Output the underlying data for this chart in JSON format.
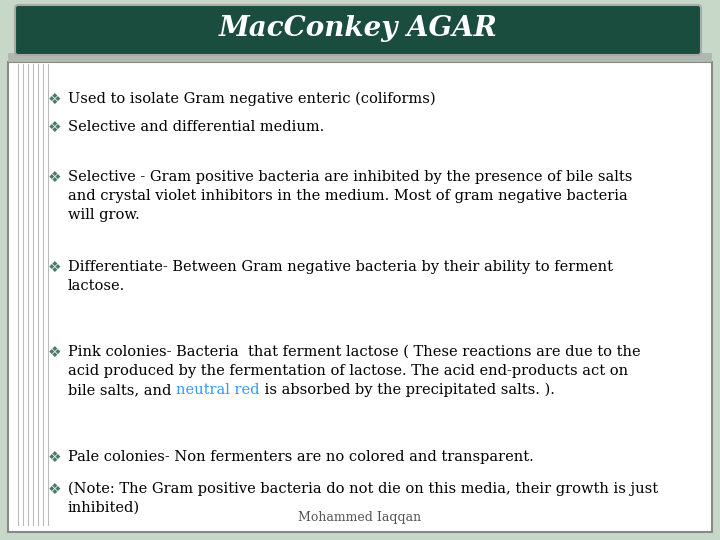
{
  "title": "MacConkey AGAR",
  "title_color": "#FFFFFF",
  "title_bg_color": "#1B4D3E",
  "title_border_color": "#AAAAAA",
  "bg_color": "#C8D8C8",
  "body_bg_color": "#FFFFFF",
  "bullet_color": "#4A7A6A",
  "text_color": "#000000",
  "highlight_color": "#3399FF",
  "footer_text": "Mohammed Iaqqan",
  "stripe_color": "#BBBBBB",
  "gray_bar_color": "#B0B8B0",
  "outer_border_color": "#888888",
  "bullets": [
    {
      "lines": [
        "Used to isolate Gram negative enteric (coliforms)"
      ],
      "highlight_word": null
    },
    {
      "lines": [
        "Selective and differential medium."
      ],
      "highlight_word": null
    },
    {
      "lines": [
        "Selective - Gram positive bacteria are inhibited by the presence of bile salts",
        "and crystal violet inhibitors in the medium. Most of gram negative bacteria",
        "will grow."
      ],
      "highlight_word": null
    },
    {
      "lines": [
        "Differentiate- Between Gram negative bacteria by their ability to ferment",
        "lactose."
      ],
      "highlight_word": null
    },
    {
      "lines": [
        "Pink colonies- Bacteria  that ferment lactose ( These reactions are due to the",
        "acid produced by the fermentation of lactose. The acid end-products act on",
        "bile salts, and neutral red is absorbed by the precipitated salts. )."
      ],
      "highlight_word": "neutral red"
    },
    {
      "lines": [
        "Pale colonies- Non fermenters are no colored and transparent."
      ],
      "highlight_word": null
    },
    {
      "lines": [
        "(Note: The Gram positive bacteria do not die on this media, their growth is just",
        "inhibited)"
      ],
      "highlight_word": null
    }
  ]
}
